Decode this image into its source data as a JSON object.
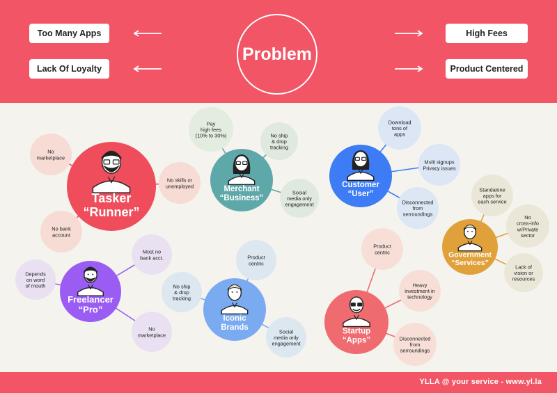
{
  "header": {
    "title": "Problem",
    "left_items": [
      "Too Many Apps",
      "Lack Of Loyalty"
    ],
    "right_items": [
      "High Fees",
      "Product Centered"
    ]
  },
  "personas": [
    {
      "id": "tasker",
      "title": "Tasker",
      "subtitle": "“Runner”",
      "color": "#ef4d5b",
      "needs": [
        [
          "No",
          "marketplace"
        ],
        [
          "No skills or",
          "unemployed"
        ],
        [
          "No bank",
          "account"
        ]
      ]
    },
    {
      "id": "merchant",
      "title": "Merchant",
      "subtitle": "“Business”",
      "color": "#5fa8a9",
      "needs": [
        [
          "Pay",
          "high fees",
          "(10% to 30%)"
        ],
        [
          "No ship",
          "& drop",
          "tracking"
        ],
        [
          "Social",
          "media only",
          "engagement"
        ]
      ]
    },
    {
      "id": "customer",
      "title": "Customer",
      "subtitle": "“User”",
      "color": "#3d7cf4",
      "needs": [
        [
          "Download",
          "tons of",
          "apps"
        ],
        [
          "Multi signups",
          "Privacy issues"
        ],
        [
          "Disconnected",
          "from",
          "serroundings"
        ]
      ]
    },
    {
      "id": "government",
      "title": "Government",
      "subtitle": "“Services”",
      "color": "#e0a13a",
      "needs": [
        [
          "Standalone",
          "apps for",
          "each service"
        ],
        [
          "No",
          "cross-info",
          "w/Private",
          "sector"
        ],
        [
          "Lack of",
          "vision or",
          "resources"
        ]
      ]
    },
    {
      "id": "freelancer",
      "title": "Freelancer",
      "subtitle": "“Pro”",
      "color": "#9a5cf2",
      "needs": [
        [
          "Most no",
          "bank acct."
        ],
        [
          "Depends",
          "on word",
          "of mouth"
        ],
        [
          "No",
          "marketplace"
        ]
      ]
    },
    {
      "id": "iconic",
      "title": "Iconic",
      "subtitle": "Brands",
      "color": "#7aaaf0",
      "needs": [
        [
          "Product",
          "centric"
        ],
        [
          "No ship",
          "& drop",
          "tracking"
        ],
        [
          "Social",
          "media only",
          "engagement"
        ]
      ]
    },
    {
      "id": "startup",
      "title": "Startup",
      "subtitle": "“Apps”",
      "color": "#ef6b6f",
      "needs": [
        [
          "Product",
          "centric"
        ],
        [
          "Heavy",
          "investment in",
          "technology"
        ],
        [
          "Disconnected",
          "from",
          "serroundings"
        ]
      ]
    }
  ],
  "footer": {
    "text": "YLLA @ your service - www.yl.la"
  },
  "colors": {
    "brand": "#f15566",
    "background": "#f5f3ee"
  }
}
